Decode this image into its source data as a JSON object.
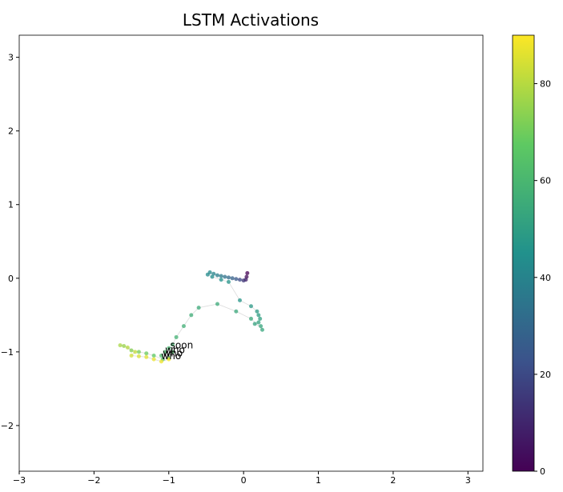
{
  "chart_data": {
    "type": "scatter",
    "title": "LSTM Activations",
    "colormap": "viridis",
    "x": [
      0.05,
      0.04,
      0.03,
      0.0,
      -0.05,
      -0.1,
      -0.15,
      -0.2,
      -0.25,
      -0.3,
      -0.35,
      -0.4,
      -0.45,
      -0.48,
      -0.42,
      -0.3,
      -0.2,
      -0.05,
      0.1,
      0.18,
      0.2,
      0.22,
      0.2,
      0.15,
      0.23,
      0.25,
      0.1,
      -0.1,
      -0.35,
      -0.6,
      -0.7,
      -0.8,
      -0.9,
      -0.95,
      -1.0,
      -1.05,
      -1.1,
      -0.95,
      -1.0,
      -1.08,
      -1.2,
      -1.3,
      -1.4,
      -1.5,
      -1.6,
      -1.65,
      -1.55,
      -1.45,
      -1.5,
      -1.4,
      -1.3,
      -1.2,
      -1.1,
      -1.0
    ],
    "y": [
      0.07,
      0.02,
      -0.02,
      -0.03,
      -0.02,
      -0.01,
      0.0,
      0.01,
      0.02,
      0.03,
      0.04,
      0.06,
      0.08,
      0.05,
      0.02,
      -0.02,
      -0.05,
      -0.3,
      -0.38,
      -0.45,
      -0.5,
      -0.55,
      -0.6,
      -0.62,
      -0.65,
      -0.7,
      -0.55,
      -0.45,
      -0.35,
      -0.4,
      -0.5,
      -0.65,
      -0.8,
      -0.9,
      -0.95,
      -1.0,
      -1.05,
      -1.0,
      -1.08,
      -1.1,
      -1.05,
      -1.02,
      -1.0,
      -0.98,
      -0.92,
      -0.91,
      -0.94,
      -1.0,
      -1.05,
      -1.06,
      -1.07,
      -1.1,
      -1.13,
      -1.1
    ],
    "c": [
      0,
      3,
      8,
      14,
      20,
      25,
      28,
      31,
      34,
      36,
      38,
      40,
      42,
      43,
      44,
      45,
      46,
      47,
      48,
      49,
      50,
      51,
      52,
      52,
      53,
      53,
      54,
      54,
      55,
      55,
      56,
      57,
      58,
      59,
      60,
      61,
      62,
      63,
      64,
      65,
      67,
      69,
      71,
      73,
      76,
      78,
      80,
      82,
      84,
      85,
      86,
      87,
      88,
      89
    ],
    "annotations": [
      {
        "text": "soon",
        "x": -0.98,
        "y": -0.95
      },
      {
        "text": "who",
        "x": -1.05,
        "y": -1.02
      },
      {
        "text": "who",
        "x": -1.08,
        "y": -1.06
      },
      {
        "text": "who",
        "x": -1.1,
        "y": -1.1
      }
    ],
    "xlim": [
      -3,
      3.2
    ],
    "ylim": [
      -2.62,
      3.3
    ],
    "clim": [
      0,
      90
    ],
    "xticks": [
      {
        "value": -3,
        "label": "−3"
      },
      {
        "value": -2,
        "label": "−2"
      },
      {
        "value": -1,
        "label": "−1"
      },
      0,
      1,
      2,
      3
    ],
    "yticks": [
      {
        "value": -2,
        "label": "−2"
      },
      {
        "value": -1,
        "label": "−1"
      },
      0,
      1,
      2,
      3
    ],
    "cticks": [
      0,
      20,
      40,
      60,
      80
    ]
  }
}
